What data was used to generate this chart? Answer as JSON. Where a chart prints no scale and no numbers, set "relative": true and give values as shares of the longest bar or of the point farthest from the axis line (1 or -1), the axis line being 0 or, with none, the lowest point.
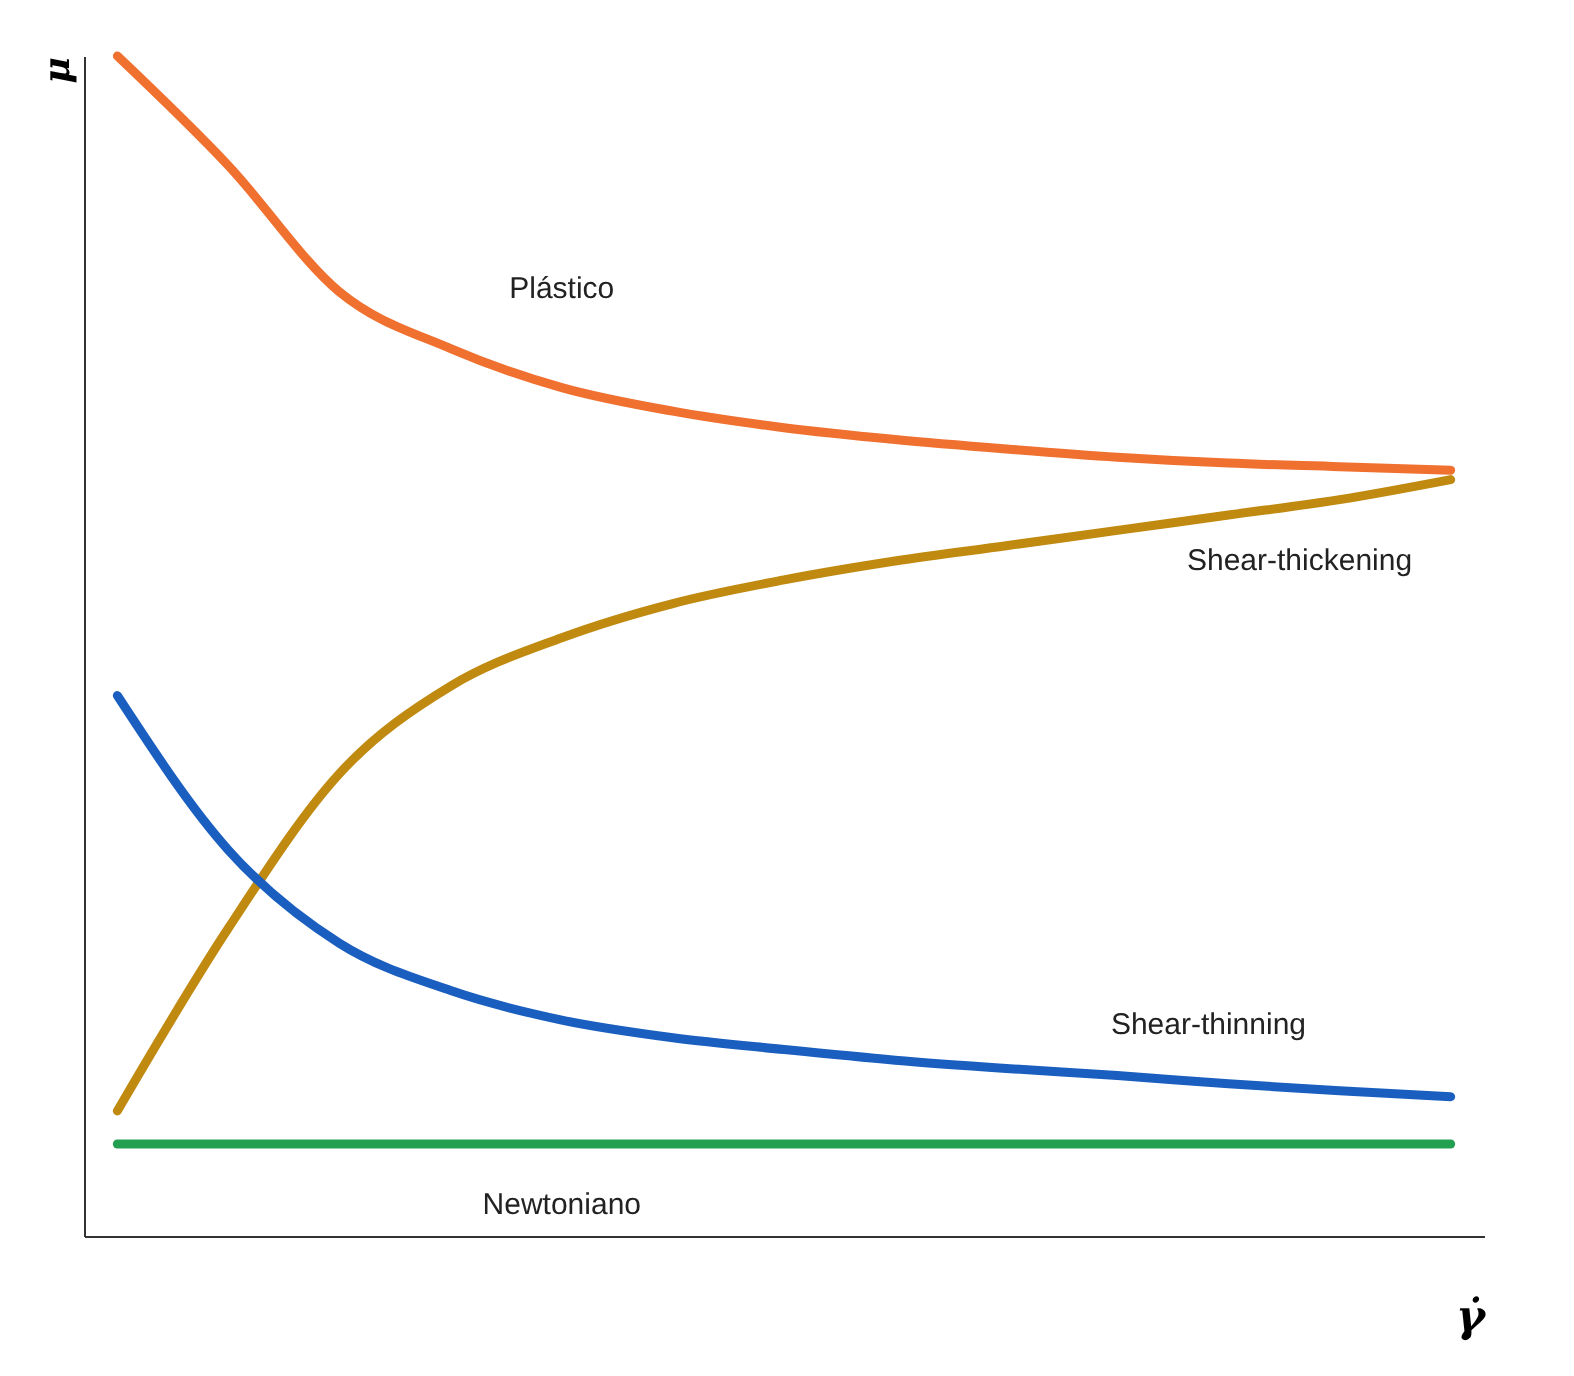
{
  "chart_data": {
    "type": "line",
    "relative": true,
    "xlabel": "γ̇",
    "ylabel": "μ",
    "grid": false,
    "marker": "none",
    "line_style": "solid",
    "categories": [
      null,
      null,
      null,
      null,
      null,
      null,
      null,
      null,
      null,
      null,
      null,
      null,
      null
    ],
    "series": [
      {
        "name": "Plástico",
        "color": "#f07030",
        "values": [
          1,
          0.907,
          0.8,
          0.752,
          0.719,
          0.699,
          0.685,
          0.675,
          0.667,
          0.66,
          0.655,
          0.652,
          0.649
        ]
      },
      {
        "name": "Shear-thickening",
        "color": "#c08a10",
        "values": [
          0.106,
          0.261,
          0.392,
          0.466,
          0.507,
          0.536,
          0.556,
          0.572,
          0.585,
          0.598,
          0.611,
          0.624,
          0.641
        ]
      },
      {
        "name": "Shear-thinning",
        "color": "#1a5fbf",
        "values": [
          0.458,
          0.327,
          0.248,
          0.208,
          0.183,
          0.168,
          0.158,
          0.149,
          0.142,
          0.136,
          0.129,
          0.123,
          0.118
        ]
      },
      {
        "name": "Newtoniano",
        "color": "#22a050",
        "values": [
          0.078,
          0.078,
          0.078,
          0.078,
          0.078,
          0.078,
          0.078,
          0.078,
          0.078,
          0.078,
          0.078,
          0.078,
          0.078
        ]
      }
    ]
  }
}
